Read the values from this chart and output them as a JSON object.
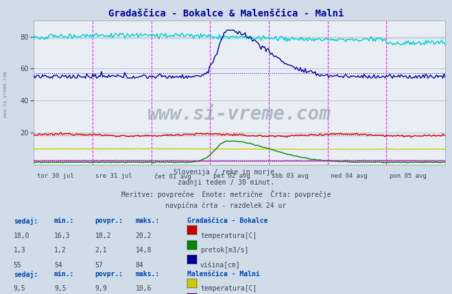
{
  "title": "Gradaščica - Bokalce & Malenščica - Malni",
  "title_color": "#000099",
  "bg_color": "#d0dce8",
  "plot_bg": "#e8eef4",
  "subtitle_lines": [
    "Slovenija / reke in morje.",
    "zadnji teden / 30 minut.",
    "Meritve: povprečne  Enote: metrične  Črta: povprečje",
    "navpična črta - razdelek 24 ur"
  ],
  "xlabel_days": [
    "tor 30 jul",
    "sre 31 jul",
    "čet 01 avg",
    "pet 02 avg",
    "sob 03 avg",
    "ned 04 avg",
    "pon 05 avg"
  ],
  "ylim": [
    0,
    90
  ],
  "yticks": [
    20,
    40,
    60,
    80
  ],
  "n_points": 336,
  "bokalce": {
    "label": "Gradaščica - Bokalce",
    "temp_color": "#cc0000",
    "pretok_color": "#008800",
    "visina_color": "#000099",
    "temp_avg": 18.2,
    "pretok_avg": 2.1,
    "visina_avg": 57,
    "temp_now": 18.0,
    "temp_min": 16.3,
    "temp_max": 20.2,
    "pretok_now": 1.3,
    "pretok_min": 1.2,
    "pretok_max": 14.8,
    "visina_now": 55,
    "visina_min": 54,
    "visina_max": 84
  },
  "malni": {
    "label": "Malenščica - Malni",
    "temp_color": "#cccc00",
    "pretok_color": "#cc00cc",
    "visina_color": "#00cccc",
    "temp_avg": 9.9,
    "pretok_avg": 2.5,
    "visina_avg": 79,
    "temp_now": 9.5,
    "temp_min": 9.5,
    "temp_max": 10.6,
    "pretok_now": 2.4,
    "pretok_min": 2.2,
    "pretok_max": 2.8,
    "visina_now": 77,
    "visina_min": 75,
    "visina_max": 82
  },
  "watermark": "www.si-vreme.com",
  "watermark_color": "#8899aa",
  "left_label": "www.si-vreme.com",
  "left_label_color": "#6688aa",
  "vline_color": "#dd00dd",
  "grid_color": "#bbbbcc"
}
